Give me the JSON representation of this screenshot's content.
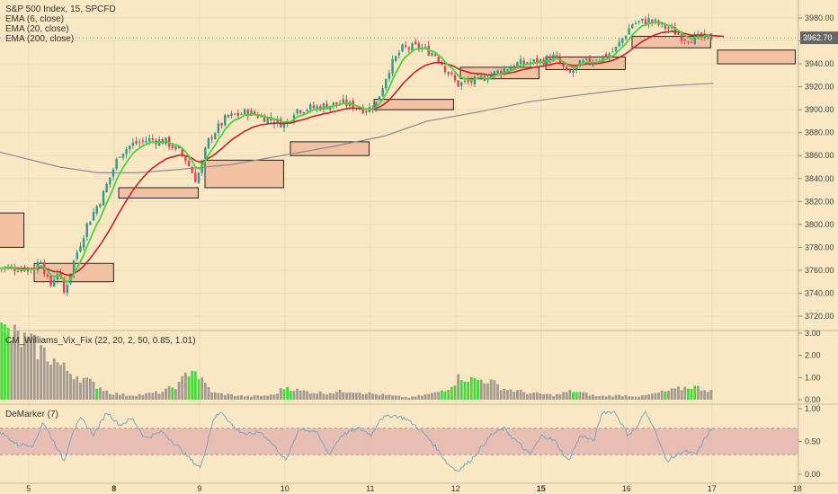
{
  "colors": {
    "background": "#fae7c3",
    "up_candle": "#2e9a8a",
    "down_candle": "#e0405e",
    "ema_fast": "#4cd23c",
    "ema_mid": "#c0262b",
    "ema_slow": "#8b8b94",
    "zone_fill": "#f2c2a3",
    "vix_green": "#49d83c",
    "vix_gray": "#a39a91",
    "demarker_line": "#7aa7c7",
    "demarker_band": "#e4b6b0",
    "price_tag": "#666666"
  },
  "chart_data": [
    {
      "type": "candlestick",
      "title": "S&P 500 Index, 15, SPCFD",
      "legend": [
        "EMA (6, close)",
        "EMA (20, close)",
        "EMA (200, close)"
      ],
      "ylim": [
        3710,
        3990
      ],
      "y_ticks": [
        "3720.00",
        "3740.00",
        "3760.00",
        "3780.00",
        "3800.00",
        "3820.00",
        "3840.00",
        "3860.00",
        "3880.00",
        "3900.00",
        "3920.00",
        "3940.00",
        "3960.00",
        "3980.00"
      ],
      "last_price": "3962.70",
      "x_ticks": [
        "5",
        "8",
        "9",
        "10",
        "11",
        "12",
        "15",
        "16",
        "17",
        "18"
      ],
      "close_anchors": [
        [
          0,
          3762
        ],
        [
          0.08,
          3770
        ],
        [
          0.18,
          3745
        ],
        [
          0.28,
          3760
        ],
        [
          0.35,
          3740
        ],
        [
          0.45,
          3765
        ],
        [
          0.62,
          3800
        ],
        [
          0.8,
          3825
        ],
        [
          1.0,
          3862
        ],
        [
          1.15,
          3870
        ],
        [
          1.35,
          3874
        ],
        [
          1.55,
          3872
        ],
        [
          1.75,
          3860
        ],
        [
          1.9,
          3838
        ],
        [
          2.05,
          3875
        ],
        [
          2.25,
          3893
        ],
        [
          2.5,
          3898
        ],
        [
          2.75,
          3892
        ],
        [
          2.95,
          3887
        ],
        [
          3.05,
          3900
        ],
        [
          3.3,
          3902
        ],
        [
          3.6,
          3906
        ],
        [
          3.9,
          3900
        ],
        [
          4.0,
          3905
        ],
        [
          4.15,
          3935
        ],
        [
          4.3,
          3953
        ],
        [
          4.5,
          3955
        ],
        [
          4.7,
          3948
        ],
        [
          4.95,
          3922
        ],
        [
          5.15,
          3925
        ],
        [
          5.4,
          3932
        ],
        [
          5.65,
          3940
        ],
        [
          5.9,
          3942
        ],
        [
          6.1,
          3946
        ],
        [
          6.25,
          3930
        ],
        [
          6.4,
          3940
        ],
        [
          6.6,
          3944
        ],
        [
          6.8,
          3952
        ],
        [
          7.0,
          3975
        ],
        [
          7.2,
          3978
        ],
        [
          7.45,
          3970
        ],
        [
          7.6,
          3963
        ],
        [
          7.75,
          3962
        ],
        [
          7.95,
          3963
        ]
      ],
      "ema_200_anchors": [
        [
          -0.4,
          3863
        ],
        [
          0.3,
          3850
        ],
        [
          0.75,
          3845
        ],
        [
          1.2,
          3845
        ],
        [
          1.7,
          3848
        ],
        [
          2.3,
          3852
        ],
        [
          2.9,
          3860
        ],
        [
          3.5,
          3868
        ],
        [
          4.1,
          3877
        ],
        [
          4.6,
          3890
        ],
        [
          5.2,
          3898
        ],
        [
          5.8,
          3907
        ],
        [
          6.4,
          3913
        ],
        [
          6.95,
          3918
        ],
        [
          7.45,
          3921
        ],
        [
          7.95,
          3923
        ]
      ],
      "zones": [
        {
          "x0": -0.45,
          "x1": -0.12,
          "y0": 3780,
          "y1": 3810
        },
        {
          "x0": 0.0,
          "x1": 0.93,
          "y0": 3750,
          "y1": 3766
        },
        {
          "x0": 0.99,
          "x1": 1.92,
          "y0": 3823,
          "y1": 3832
        },
        {
          "x0": 2.0,
          "x1": 2.92,
          "y0": 3832,
          "y1": 3856
        },
        {
          "x0": 3.0,
          "x1": 3.92,
          "y0": 3860,
          "y1": 3872
        },
        {
          "x0": 3.98,
          "x1": 4.91,
          "y0": 3900,
          "y1": 3909
        },
        {
          "x0": 4.99,
          "x1": 5.91,
          "y0": 3927,
          "y1": 3937
        },
        {
          "x0": 5.99,
          "x1": 6.92,
          "y0": 3935,
          "y1": 3946
        },
        {
          "x0": 7.0,
          "x1": 7.92,
          "y0": 3954,
          "y1": 3964
        },
        {
          "x0": 8.0,
          "x1": 8.91,
          "y0": 3940,
          "y1": 3952
        }
      ]
    },
    {
      "type": "bar",
      "title": "CM_Williams_Vix_Fix (22, 20, 2, 50, 0.85, 1.01)",
      "ylim": [
        0,
        3.0
      ],
      "y_ticks": [
        "0.00",
        "1.00",
        "2.00",
        "3.00"
      ],
      "green_ranges": [
        [
          -0.4,
          -0.3
        ],
        [
          0.7,
          0.74
        ],
        [
          1.6,
          1.65
        ],
        [
          1.8,
          1.95
        ],
        [
          2.9,
          3.0
        ],
        [
          3.0,
          3.02
        ],
        [
          4.75,
          4.95
        ],
        [
          5.0,
          5.2
        ],
        [
          6.3,
          6.35
        ],
        [
          7.35,
          7.42
        ],
        [
          7.65,
          7.75
        ]
      ],
      "anchors": [
        [
          -0.4,
          3.1
        ],
        [
          -0.2,
          2.8
        ],
        [
          0.0,
          2.4
        ],
        [
          0.2,
          1.9
        ],
        [
          0.35,
          1.4
        ],
        [
          0.5,
          1.1
        ],
        [
          0.7,
          0.7
        ],
        [
          0.9,
          0.3
        ],
        [
          1.1,
          0.2
        ],
        [
          1.3,
          0.25
        ],
        [
          1.5,
          0.35
        ],
        [
          1.7,
          0.7
        ],
        [
          1.85,
          1.5
        ],
        [
          1.95,
          0.9
        ],
        [
          2.1,
          0.3
        ],
        [
          2.5,
          0.15
        ],
        [
          2.8,
          0.2
        ],
        [
          2.95,
          0.6
        ],
        [
          3.1,
          0.4
        ],
        [
          3.4,
          0.3
        ],
        [
          3.7,
          0.4
        ],
        [
          4.0,
          0.25
        ],
        [
          4.4,
          0.1
        ],
        [
          4.7,
          0.3
        ],
        [
          4.85,
          0.55
        ],
        [
          5.0,
          1.1
        ],
        [
          5.1,
          0.9
        ],
        [
          5.3,
          0.9
        ],
        [
          5.5,
          0.5
        ],
        [
          5.8,
          0.3
        ],
        [
          6.1,
          0.2
        ],
        [
          6.3,
          0.4
        ],
        [
          6.6,
          0.15
        ],
        [
          6.9,
          0.2
        ],
        [
          7.1,
          0.15
        ],
        [
          7.3,
          0.3
        ],
        [
          7.5,
          0.45
        ],
        [
          7.7,
          0.6
        ],
        [
          7.95,
          0.4
        ]
      ]
    },
    {
      "type": "line",
      "title": "DeMarker (7)",
      "ylim": [
        -0.1,
        1.05
      ],
      "y_ticks": [
        "0.00",
        "0.50",
        "1.00"
      ],
      "band": [
        0.3,
        0.7
      ],
      "anchors": [
        [
          -0.4,
          0.65
        ],
        [
          -0.2,
          0.45
        ],
        [
          0.0,
          0.45
        ],
        [
          0.1,
          0.8
        ],
        [
          0.25,
          0.45
        ],
        [
          0.35,
          0.2
        ],
        [
          0.45,
          0.65
        ],
        [
          0.55,
          0.85
        ],
        [
          0.7,
          0.6
        ],
        [
          0.85,
          0.95
        ],
        [
          1.0,
          0.75
        ],
        [
          1.15,
          0.85
        ],
        [
          1.3,
          0.55
        ],
        [
          1.5,
          0.65
        ],
        [
          1.7,
          0.4
        ],
        [
          1.85,
          0.2
        ],
        [
          1.95,
          0.1
        ],
        [
          2.1,
          0.85
        ],
        [
          2.2,
          0.95
        ],
        [
          2.35,
          0.7
        ],
        [
          2.5,
          0.6
        ],
        [
          2.65,
          0.65
        ],
        [
          2.8,
          0.45
        ],
        [
          2.95,
          0.2
        ],
        [
          3.1,
          0.7
        ],
        [
          3.3,
          0.65
        ],
        [
          3.45,
          0.3
        ],
        [
          3.6,
          0.6
        ],
        [
          3.8,
          0.7
        ],
        [
          3.95,
          0.6
        ],
        [
          4.05,
          0.85
        ],
        [
          4.2,
          0.9
        ],
        [
          4.35,
          0.85
        ],
        [
          4.5,
          0.7
        ],
        [
          4.65,
          0.5
        ],
        [
          4.85,
          0.15
        ],
        [
          4.95,
          0.05
        ],
        [
          5.1,
          0.2
        ],
        [
          5.2,
          0.35
        ],
        [
          5.35,
          0.6
        ],
        [
          5.5,
          0.7
        ],
        [
          5.65,
          0.5
        ],
        [
          5.8,
          0.3
        ],
        [
          5.95,
          0.6
        ],
        [
          6.1,
          0.5
        ],
        [
          6.25,
          0.2
        ],
        [
          6.4,
          0.6
        ],
        [
          6.55,
          0.5
        ],
        [
          6.65,
          0.95
        ],
        [
          6.8,
          0.95
        ],
        [
          6.95,
          0.6
        ],
        [
          7.05,
          0.7
        ],
        [
          7.15,
          0.95
        ],
        [
          7.25,
          0.75
        ],
        [
          7.4,
          0.2
        ],
        [
          7.6,
          0.35
        ],
        [
          7.75,
          0.3
        ],
        [
          7.9,
          0.65
        ],
        [
          7.95,
          0.7
        ]
      ]
    }
  ]
}
